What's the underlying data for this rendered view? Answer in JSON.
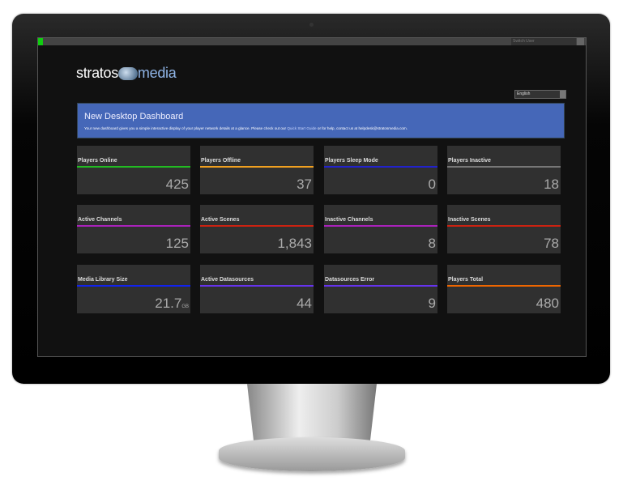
{
  "topbar": {
    "switch_user": "Switch User"
  },
  "logo": {
    "text_left": "stratos",
    "text_right": "media"
  },
  "language": {
    "selected": "English"
  },
  "banner": {
    "title": "New Desktop Dashboard",
    "text_before": "Your new dashboard gives you a simple interactive display of your player network details at a glance. Please check out our ",
    "link": "Quick Start Guide",
    "text_after": " or for help, contact us at helpdesk@stratosmedia.com."
  },
  "cards": [
    {
      "label": "Players Online",
      "value": "425",
      "color": "#22bb22"
    },
    {
      "label": "Players Offline",
      "value": "37",
      "color": "#f0a020"
    },
    {
      "label": "Players Sleep Mode",
      "value": "0",
      "color": "#2222cc"
    },
    {
      "label": "Players Inactive",
      "value": "18",
      "color": "#777777"
    },
    {
      "label": "Active Channels",
      "value": "125",
      "color": "#aa22bb"
    },
    {
      "label": "Active Scenes",
      "value": "1,843",
      "color": "#cc2211"
    },
    {
      "label": "Inactive Channels",
      "value": "8",
      "color": "#aa22bb"
    },
    {
      "label": "Inactive Scenes",
      "value": "78",
      "color": "#cc2211"
    },
    {
      "label": "Media Library Size",
      "value": "21.7",
      "unit": "GB",
      "color": "#1122ee"
    },
    {
      "label": "Active Datasources",
      "value": "44",
      "color": "#6633ee"
    },
    {
      "label": "Datasources Error",
      "value": "9",
      "color": "#6633ee"
    },
    {
      "label": "Players Total",
      "value": "480",
      "color": "#ee6600"
    }
  ]
}
